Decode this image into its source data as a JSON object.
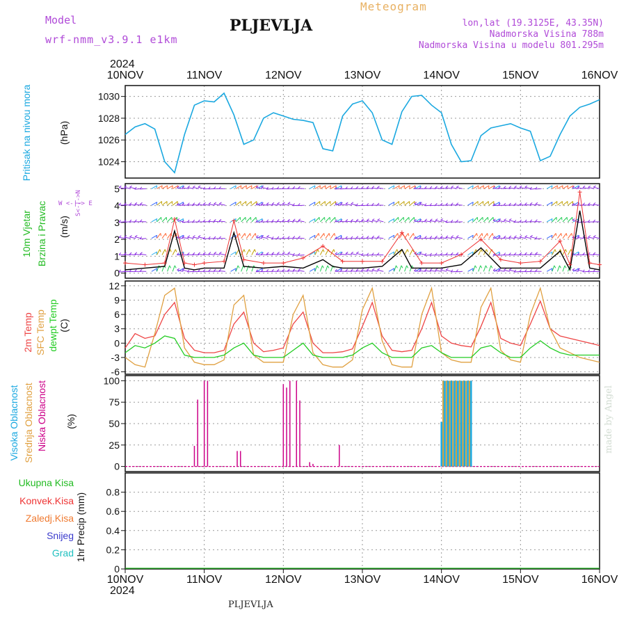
{
  "header": {
    "model_label": "Model",
    "model_name": "wrf-nmm_v3.9.1 e1km",
    "station": "PLJEVLJA",
    "product": "Meteogram",
    "lonlat": "lon,lat (19.3125E, 43.35N)",
    "altitude": "Nadmorska Visina 788m",
    "model_altitude": "Nadmorska Visina u modelu 801.295m"
  },
  "footer": {
    "station": "PLJEVLJA",
    "credit": "made by Angel"
  },
  "colors": {
    "pressure": "#1aa8e0",
    "temp2m": "#ee4444",
    "sfc_temp": "#e0a040",
    "dewpoint": "#22cc22",
    "high_cloud": "#1aa8e0",
    "mid_cloud": "#c8a040",
    "low_cloud": "#cc0088",
    "wind_speed": "#000000",
    "gust": "#ee3333",
    "wind_label": "#b04ad8",
    "total_precip": "#22bb22",
    "conv_precip": "#ee3333",
    "frz_precip": "#f07a30",
    "snow": "#3a3acc",
    "graupel": "#20c0c0"
  },
  "panel_labels": {
    "pressure": {
      "name": "Pritisak na nivou mora",
      "unit": "(hPa)"
    },
    "wind": {
      "name1": "10m Vjetar",
      "name2": "Brzina i Pravac",
      "unit": "(m/s)",
      "compass": "W <-|-> E",
      "compass_ns": "S<-|->N"
    },
    "temp": {
      "name1": "2m Temp",
      "name2": "SFC Temp",
      "name3": "dewpt Temp",
      "unit": "(C)"
    },
    "cloud": {
      "name1": "Visoka Oblacnost",
      "name2": "Srednja Oblacnost",
      "name3": "Niska Oblacnost",
      "unit": "(%)"
    },
    "precip": {
      "items": [
        "Ukupna Kisa",
        "Konvek.Kisa",
        "Zaledj.Kisa",
        "Snijeg",
        "Grad"
      ],
      "unit": "1hr Precip (mm)"
    }
  },
  "chart_data": [
    {
      "panel": "pressure",
      "type": "line",
      "x": [
        0,
        3,
        6,
        9,
        12,
        15,
        18,
        21,
        24,
        27,
        30,
        33,
        36,
        39,
        42,
        45,
        48,
        51,
        54,
        57,
        60,
        63,
        66,
        69,
        72,
        75,
        78,
        81,
        84,
        87,
        90,
        93,
        96,
        99,
        102,
        105,
        108,
        111,
        114,
        117,
        120,
        123,
        126,
        129,
        132,
        135,
        138,
        141,
        144
      ],
      "values": [
        1026.5,
        1027.2,
        1027.5,
        1027.0,
        1024.0,
        1023.0,
        1026.5,
        1029.2,
        1029.6,
        1029.5,
        1030.3,
        1028.3,
        1025.6,
        1026.0,
        1028.0,
        1028.5,
        1028.2,
        1027.9,
        1027.8,
        1027.6,
        1025.2,
        1025.0,
        1028.2,
        1029.3,
        1029.6,
        1028.5,
        1026.0,
        1025.6,
        1028.6,
        1030.0,
        1030.1,
        1029.2,
        1028.5,
        1025.6,
        1024.0,
        1024.1,
        1026.4,
        1027.1,
        1027.3,
        1027.5,
        1027.1,
        1026.8,
        1024.1,
        1024.5,
        1026.5,
        1028.2,
        1029.0,
        1029.3,
        1029.7
      ],
      "ylim": [
        1022.5,
        1031.0
      ],
      "yticks": [
        "1024",
        "1026",
        "1028",
        "1030"
      ]
    },
    {
      "panel": "wind",
      "type": "line",
      "series": [
        {
          "name": "speed",
          "x": [
            0,
            6,
            12,
            15,
            18,
            21,
            24,
            27,
            30,
            33,
            36,
            42,
            48,
            54,
            60,
            63,
            66,
            69,
            72,
            78,
            84,
            87,
            90,
            96,
            102,
            108,
            114,
            120,
            126,
            132,
            135,
            138,
            141,
            144
          ],
          "values": [
            0.2,
            0.3,
            0.4,
            2.5,
            0.3,
            0.2,
            0.3,
            0.3,
            0.3,
            2.4,
            0.4,
            0.3,
            0.4,
            0.3,
            0.8,
            0.4,
            0.3,
            0.3,
            0.3,
            0.4,
            1.4,
            0.3,
            0.3,
            0.3,
            0.5,
            1.5,
            0.3,
            0.3,
            0.3,
            1.3,
            0.2,
            3.7,
            0.3,
            0.2
          ]
        },
        {
          "name": "gust",
          "x": [
            0,
            6,
            12,
            15,
            18,
            21,
            24,
            30,
            33,
            36,
            42,
            48,
            54,
            60,
            66,
            72,
            78,
            84,
            90,
            96,
            102,
            108,
            114,
            120,
            126,
            132,
            135,
            138,
            141,
            144
          ],
          "values": [
            0.6,
            0.5,
            0.6,
            3.2,
            0.6,
            0.5,
            0.6,
            0.7,
            3.1,
            0.8,
            0.6,
            0.6,
            0.9,
            1.6,
            0.7,
            0.7,
            0.7,
            2.4,
            0.6,
            0.6,
            1.1,
            2.0,
            0.8,
            0.6,
            0.7,
            1.9,
            0.5,
            4.8,
            0.6,
            0.5
          ]
        }
      ],
      "ylim": [
        -0.3,
        5.3
      ],
      "yticks": [
        "0",
        "1",
        "2",
        "3",
        "4",
        "5"
      ]
    },
    {
      "panel": "temp",
      "type": "line",
      "series": [
        {
          "name": "2m",
          "x": [
            0,
            3,
            6,
            9,
            12,
            15,
            18,
            21,
            24,
            27,
            30,
            33,
            36,
            39,
            42,
            45,
            48,
            51,
            54,
            57,
            60,
            63,
            66,
            69,
            72,
            75,
            78,
            81,
            84,
            87,
            90,
            93,
            96,
            99,
            102,
            105,
            108,
            111,
            114,
            117,
            120,
            123,
            126,
            129,
            132,
            135,
            138,
            141,
            144
          ],
          "values": [
            -1.0,
            2.0,
            1.0,
            1.5,
            6.0,
            8.5,
            1.0,
            -1.5,
            -2.0,
            -2.0,
            -1.5,
            4.0,
            6.5,
            0.0,
            -1.8,
            -1.5,
            -1.0,
            4.0,
            6.5,
            0.0,
            -2.0,
            -2.0,
            -1.8,
            -1.2,
            3.5,
            8.5,
            1.5,
            -1.5,
            -1.8,
            -1.5,
            3.0,
            8.5,
            1.5,
            0.0,
            -0.5,
            -0.8,
            3.5,
            8.5,
            1.0,
            0.0,
            -0.5,
            4.0,
            8.8,
            3.0,
            1.5,
            1.0,
            0.5,
            0.0,
            -0.5
          ]
        },
        {
          "name": "sfc",
          "x": [
            0,
            3,
            6,
            9,
            12,
            15,
            18,
            21,
            24,
            27,
            30,
            33,
            36,
            39,
            42,
            45,
            48,
            51,
            54,
            57,
            60,
            63,
            66,
            69,
            72,
            75,
            78,
            81,
            84,
            87,
            90,
            93,
            96,
            99,
            102,
            105,
            108,
            111,
            114,
            117,
            120,
            123,
            126,
            129,
            132,
            135,
            138,
            141,
            144
          ],
          "values": [
            -3.0,
            -4.5,
            -5.0,
            2.0,
            10.0,
            11.5,
            -1.0,
            -4.0,
            -4.5,
            -4.5,
            -3.5,
            8.0,
            10.0,
            -2.5,
            -4.0,
            -4.0,
            -4.0,
            6.0,
            10.0,
            -2.0,
            -4.5,
            -5.0,
            -5.0,
            -3.5,
            7.0,
            11.5,
            0.5,
            -4.5,
            -5.0,
            -5.0,
            6.0,
            11.5,
            -2.0,
            -3.5,
            -4.0,
            -4.0,
            7.5,
            11.5,
            -1.5,
            -3.5,
            -4.0,
            6.0,
            11.5,
            3.0,
            -1.0,
            -2.0,
            -3.0,
            -3.5,
            -4.0
          ]
        },
        {
          "name": "dewpt",
          "x": [
            0,
            3,
            6,
            9,
            12,
            15,
            18,
            21,
            24,
            27,
            30,
            33,
            36,
            39,
            42,
            45,
            48,
            51,
            54,
            57,
            60,
            63,
            66,
            69,
            72,
            75,
            78,
            81,
            84,
            87,
            90,
            93,
            96,
            99,
            102,
            105,
            108,
            111,
            114,
            117,
            120,
            123,
            126,
            129,
            132,
            135,
            138,
            141,
            144
          ],
          "values": [
            -2.0,
            -0.5,
            -1.0,
            0.0,
            1.5,
            1.0,
            -2.5,
            -3.0,
            -3.0,
            -3.0,
            -2.5,
            -1.0,
            0.0,
            -2.5,
            -3.0,
            -3.0,
            -3.0,
            -1.5,
            0.0,
            -2.5,
            -3.0,
            -3.0,
            -3.0,
            -2.5,
            -1.0,
            0.0,
            -2.0,
            -3.0,
            -3.0,
            -3.0,
            -1.0,
            -0.5,
            -2.0,
            -3.0,
            -3.0,
            -3.0,
            -1.0,
            -0.5,
            -2.0,
            -3.0,
            -3.0,
            -1.0,
            0.5,
            -1.0,
            -2.0,
            -2.5,
            -2.5,
            -2.5,
            -2.5
          ]
        }
      ],
      "ylim": [
        -6.5,
        13.0
      ],
      "yticks": [
        "-6",
        "-3",
        "0",
        "3",
        "6",
        "9",
        "12"
      ]
    },
    {
      "panel": "cloud",
      "type": "bar",
      "series": [
        {
          "name": "low",
          "x": [
            21,
            22,
            24,
            25,
            34,
            35,
            48,
            49,
            50,
            52,
            53,
            56,
            57,
            65
          ],
          "values": [
            24,
            78,
            100,
            100,
            18,
            18,
            96,
            92,
            100,
            100,
            77,
            5,
            3,
            25
          ]
        },
        {
          "name": "mid",
          "x": [
            96.5,
            97.5,
            98.5,
            99.5,
            100.5,
            101.5,
            102.5,
            103.5,
            104.5
          ],
          "values": [
            100,
            100,
            100,
            100,
            100,
            100,
            100,
            100,
            100
          ]
        },
        {
          "name": "high",
          "x": [
            96,
            97,
            98,
            99,
            100,
            101,
            102,
            103,
            104,
            105
          ],
          "values": [
            52,
            100,
            100,
            100,
            100,
            100,
            100,
            100,
            100,
            100
          ]
        }
      ],
      "ylim": [
        -6,
        106
      ],
      "yticks": [
        "0",
        "25",
        "50",
        "75",
        "100"
      ]
    },
    {
      "panel": "precip",
      "type": "line",
      "series": [
        {
          "name": "total",
          "x": [
            0,
            144
          ],
          "values": [
            0,
            0
          ]
        }
      ],
      "ylim": [
        0,
        1.0
      ],
      "yticks": [
        "0",
        "0.2",
        "0.4",
        "0.6",
        "0.8"
      ]
    }
  ],
  "time_axis": {
    "year": "2024",
    "hours_per_day": 24,
    "labels": [
      "10NOV",
      "11NOV",
      "12NOV",
      "13NOV",
      "14NOV",
      "15NOV",
      "16NOV"
    ]
  }
}
